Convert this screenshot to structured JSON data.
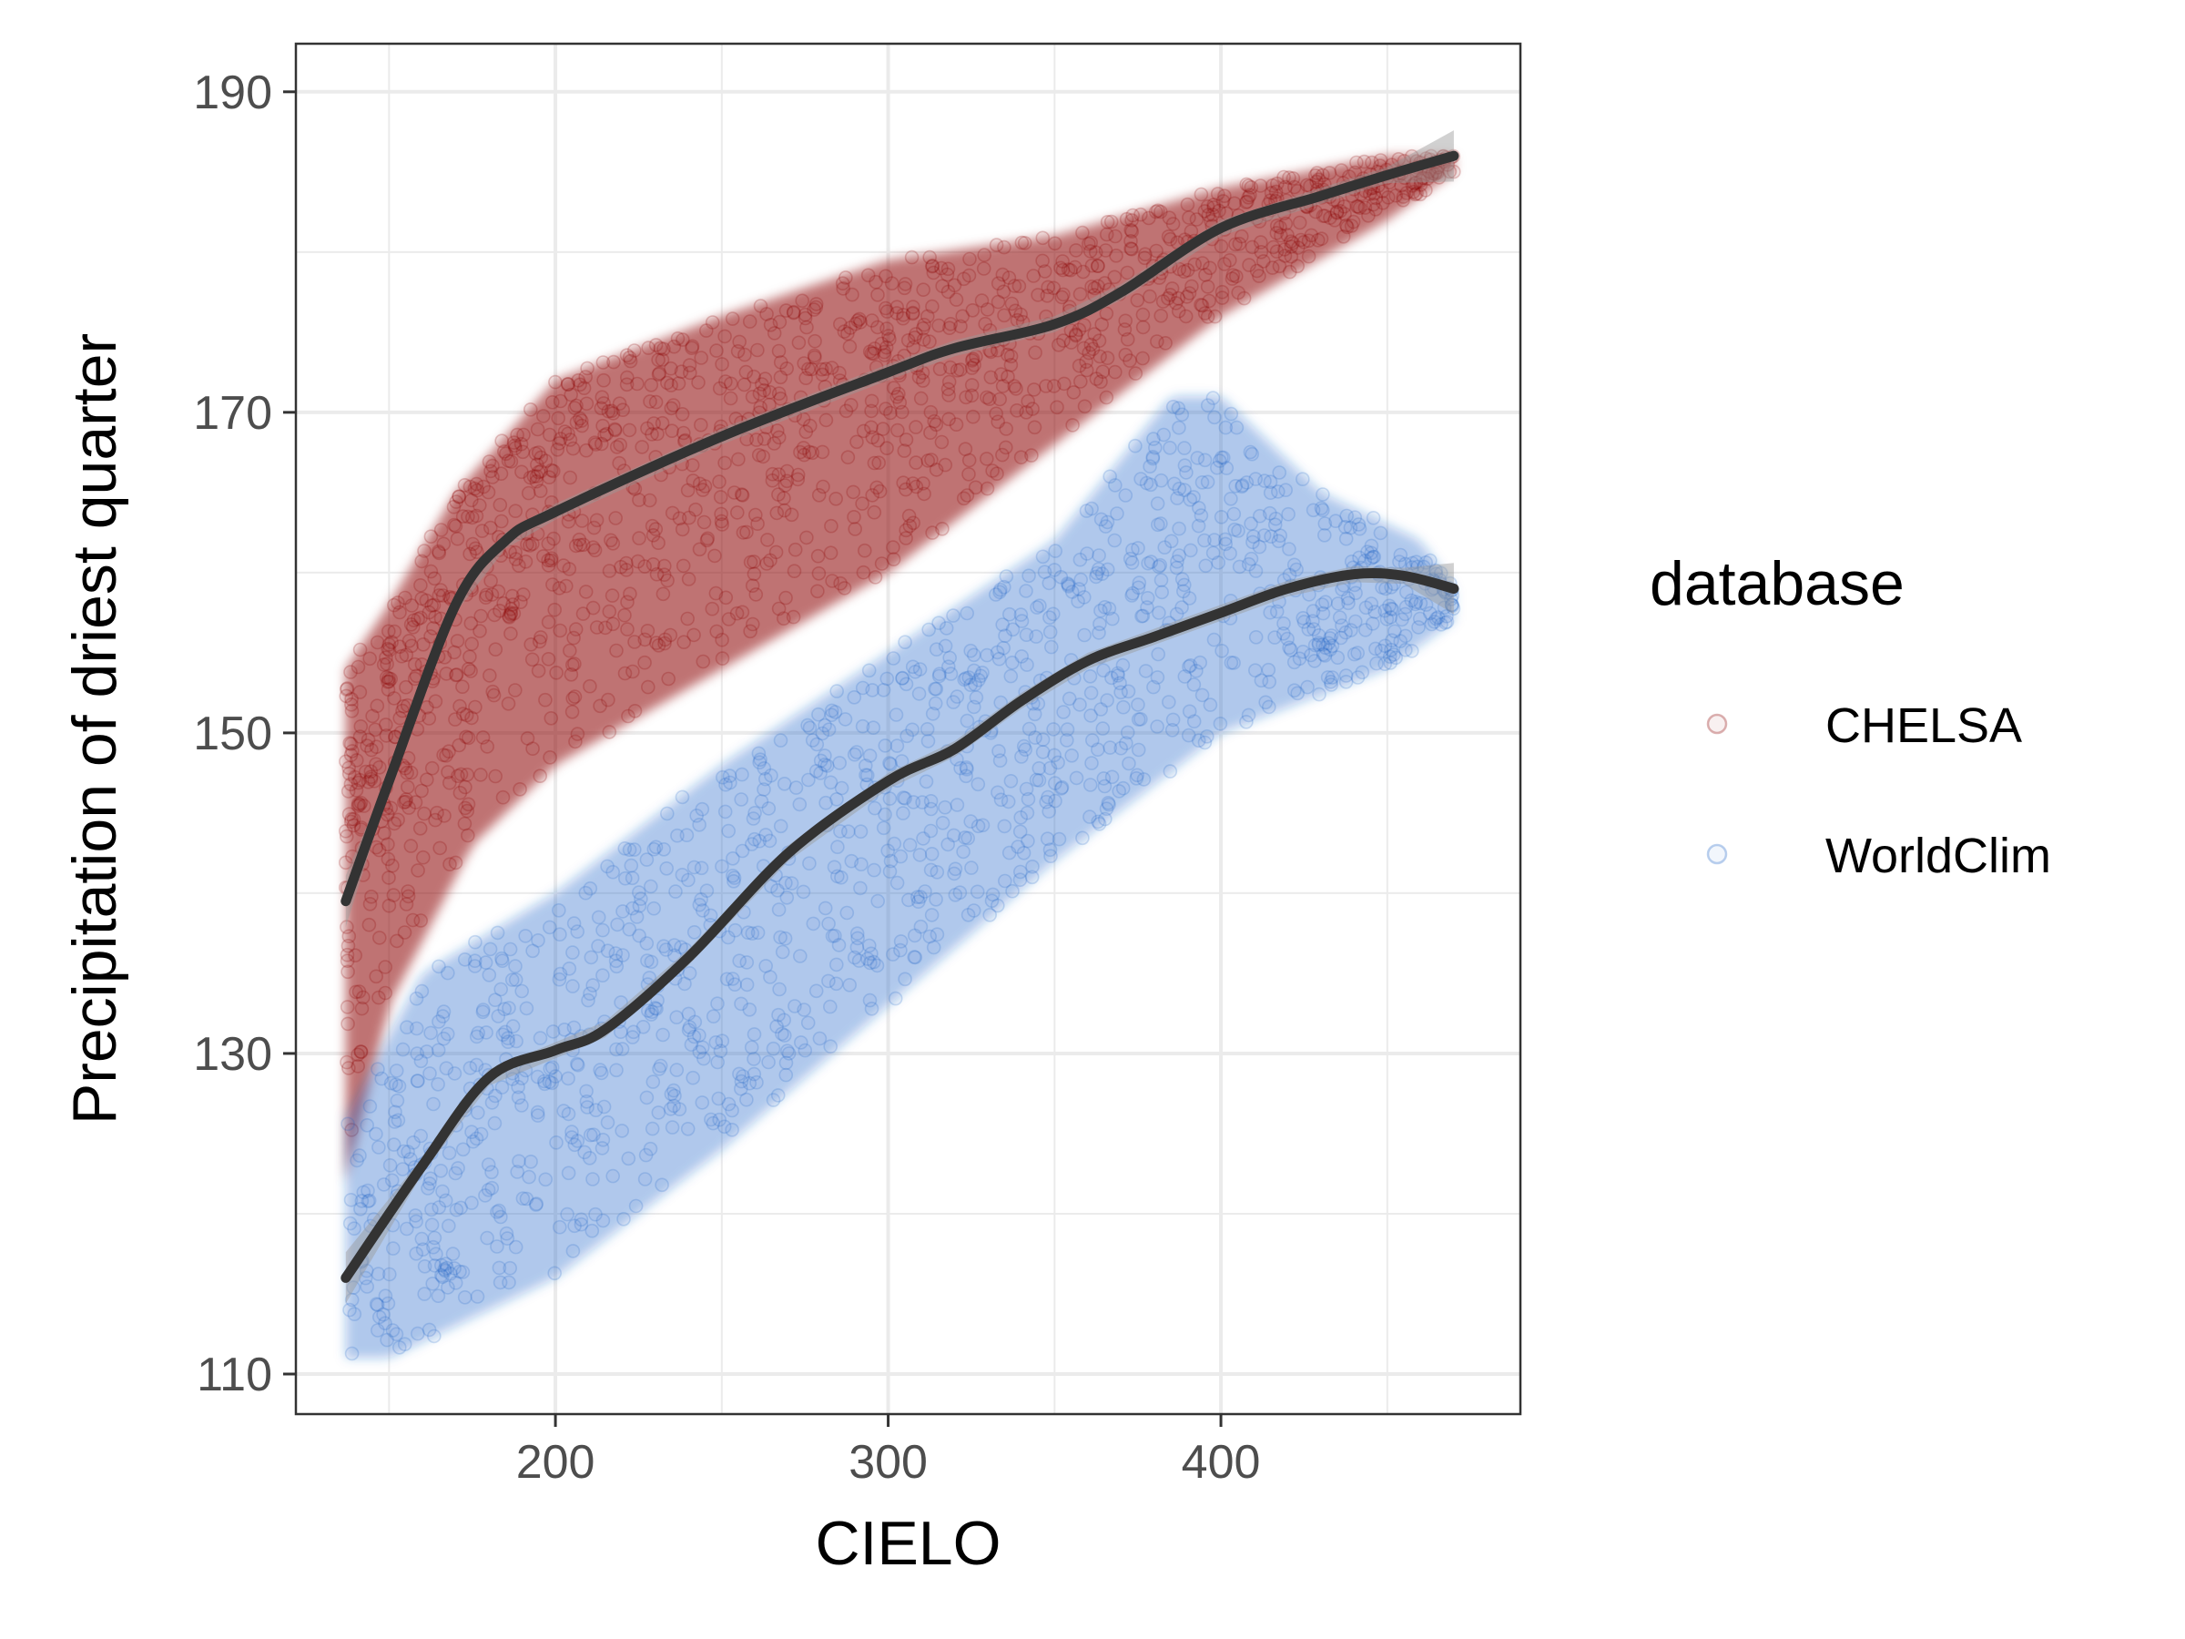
{
  "chart_data": {
    "type": "scatter",
    "xlabel": "CIELO",
    "ylabel": "Precipitation of driest quarter",
    "xlim": [
      122,
      490
    ],
    "ylim": [
      107.5,
      193
    ],
    "x_ticks": [
      200,
      300,
      400
    ],
    "y_ticks": [
      110,
      130,
      150,
      170,
      190
    ],
    "grid": true,
    "legend": {
      "title": "database",
      "placement": "right"
    },
    "series": [
      {
        "name": "CHELSA",
        "color": "#8b0000",
        "point_alpha": 0.08,
        "upper_envelope": [
          [
            137,
            154
          ],
          [
            150,
            158
          ],
          [
            170,
            165
          ],
          [
            200,
            172
          ],
          [
            250,
            176
          ],
          [
            300,
            179.5
          ],
          [
            350,
            181
          ],
          [
            400,
            184
          ],
          [
            450,
            186
          ],
          [
            470,
            186
          ]
        ],
        "lower_envelope": [
          [
            137,
            122
          ],
          [
            150,
            133
          ],
          [
            175,
            143
          ],
          [
            200,
            148
          ],
          [
            250,
            154
          ],
          [
            300,
            160
          ],
          [
            350,
            168
          ],
          [
            400,
            176
          ],
          [
            450,
            182
          ],
          [
            470,
            185
          ]
        ],
        "smooth_fit": [
          [
            137,
            139.5
          ],
          [
            150,
            147
          ],
          [
            170,
            158
          ],
          [
            185,
            162
          ],
          [
            200,
            163.8
          ],
          [
            250,
            168.5
          ],
          [
            300,
            172.5
          ],
          [
            320,
            174
          ],
          [
            350,
            175.5
          ],
          [
            370,
            177.5
          ],
          [
            400,
            181.5
          ],
          [
            430,
            183.5
          ],
          [
            450,
            184.8
          ],
          [
            470,
            186
          ]
        ]
      },
      {
        "name": "WorldClim",
        "color": "#1f64c8",
        "point_alpha": 0.06,
        "upper_envelope": [
          [
            137,
            126
          ],
          [
            160,
            135
          ],
          [
            200,
            140
          ],
          [
            250,
            148
          ],
          [
            300,
            155
          ],
          [
            350,
            162
          ],
          [
            385,
            171
          ],
          [
            400,
            171
          ],
          [
            430,
            165
          ],
          [
            460,
            162
          ],
          [
            470,
            159
          ]
        ],
        "lower_envelope": [
          [
            137,
            111
          ],
          [
            150,
            111
          ],
          [
            200,
            116
          ],
          [
            250,
            124
          ],
          [
            300,
            133
          ],
          [
            350,
            142
          ],
          [
            400,
            150
          ],
          [
            450,
            154
          ],
          [
            470,
            157
          ]
        ],
        "smooth_fit": [
          [
            137,
            116
          ],
          [
            160,
            123
          ],
          [
            180,
            128.5
          ],
          [
            200,
            130.2
          ],
          [
            215,
            131.5
          ],
          [
            240,
            136
          ],
          [
            270,
            142.5
          ],
          [
            300,
            147
          ],
          [
            320,
            149
          ],
          [
            340,
            152
          ],
          [
            360,
            154.5
          ],
          [
            380,
            156
          ],
          [
            400,
            157.5
          ],
          [
            420,
            159
          ],
          [
            440,
            159.9
          ],
          [
            455,
            159.8
          ],
          [
            470,
            159
          ]
        ]
      }
    ],
    "smooth_line_color": "#333333"
  }
}
